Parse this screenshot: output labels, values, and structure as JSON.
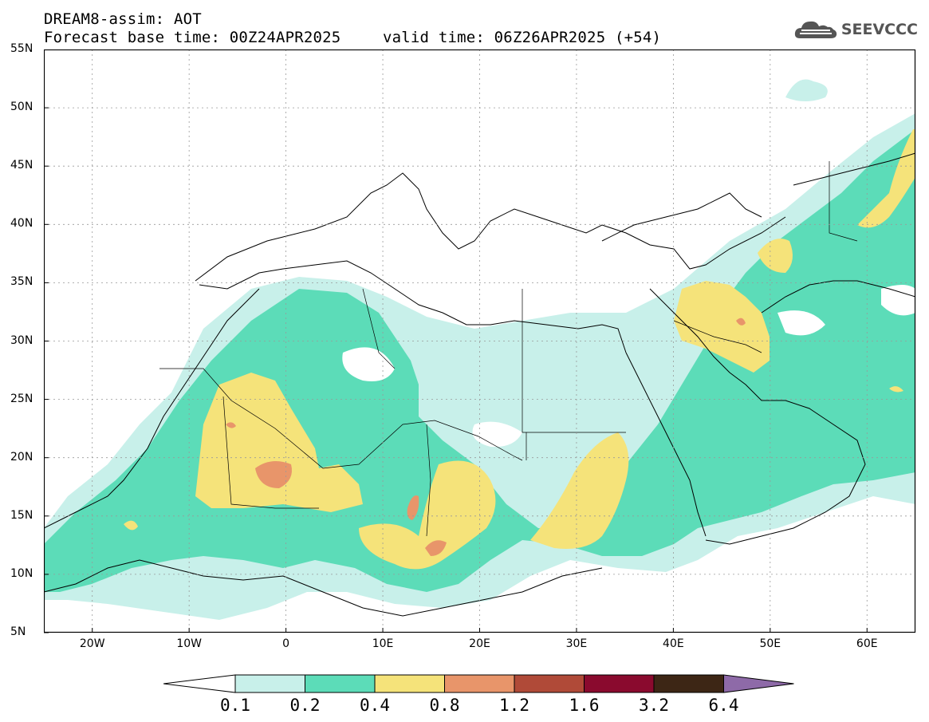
{
  "header": {
    "line1": "DREAM8-assim: AOT",
    "line2": "Forecast base time: 00Z24APR2025",
    "line3": "valid time: 06Z26APR2025 (+54)"
  },
  "logo": {
    "text": "SEEVCCC",
    "icon": "cloud-icon"
  },
  "map": {
    "lat_labels": [
      "55N",
      "50N",
      "45N",
      "40N",
      "35N",
      "30N",
      "25N",
      "20N",
      "15N",
      "10N",
      "5N"
    ],
    "lon_labels": [
      "20W",
      "10W",
      "0",
      "10E",
      "20E",
      "30E",
      "40E",
      "50E",
      "60E"
    ],
    "lon_range": [
      -25,
      65
    ],
    "lat_range": [
      5,
      55
    ],
    "grid": true
  },
  "colorbar": {
    "labels": [
      "0.1",
      "0.2",
      "0.4",
      "0.8",
      "1.2",
      "1.6",
      "3.2",
      "6.4"
    ],
    "colors": [
      "#ffffff",
      "#c8f0ea",
      "#5cdcb8",
      "#f5e37a",
      "#e8956a",
      "#b04a38",
      "#8a0a2e",
      "#3d2615",
      "#8e6aa8"
    ]
  }
}
